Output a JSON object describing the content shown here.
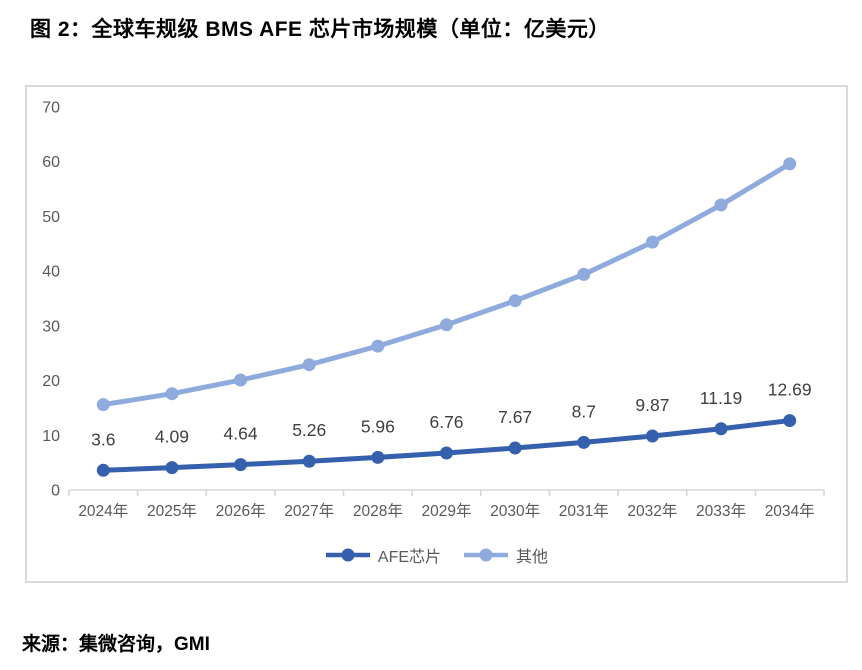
{
  "header": {
    "title": "图 2：全球车规级 BMS AFE 芯片市场规模（单位：亿美元）"
  },
  "footer": {
    "source": "来源：集微咨询，GMI"
  },
  "chart_data": {
    "type": "line",
    "title": "全球车规级 BMS AFE 芯片市场规模",
    "unit": "亿美元",
    "categories": [
      "2024年",
      "2025年",
      "2026年",
      "2027年",
      "2028年",
      "2029年",
      "2030年",
      "2031年",
      "2032年",
      "2033年",
      "2034年"
    ],
    "series": [
      {
        "name": "AFE芯片",
        "color": "#3560AD",
        "values": [
          3.6,
          4.09,
          4.64,
          5.26,
          5.96,
          6.76,
          7.67,
          8.7,
          9.87,
          11.19,
          12.69
        ],
        "point_labels": [
          "3.6",
          "4.09",
          "4.64",
          "5.26",
          "5.96",
          "6.76",
          "7.67",
          "8.7",
          "9.87",
          "11.19",
          "12.69"
        ],
        "show_labels": true
      },
      {
        "name": "其他",
        "color": "#8FAADC",
        "values": [
          15.6,
          17.6,
          20.1,
          22.9,
          26.3,
          30.2,
          34.6,
          39.4,
          45.3,
          52.1,
          59.6
        ],
        "show_labels": false
      }
    ],
    "xlabel": "",
    "ylabel": "",
    "ylim": [
      0,
      70
    ],
    "yticks": [
      0,
      10,
      20,
      30,
      40,
      50,
      60,
      70
    ],
    "grid": false,
    "legend_position": "bottom",
    "axis_color": "#D6D6D6",
    "tick_label_color": "#595959",
    "data_label_color": "#3F3F3F"
  }
}
